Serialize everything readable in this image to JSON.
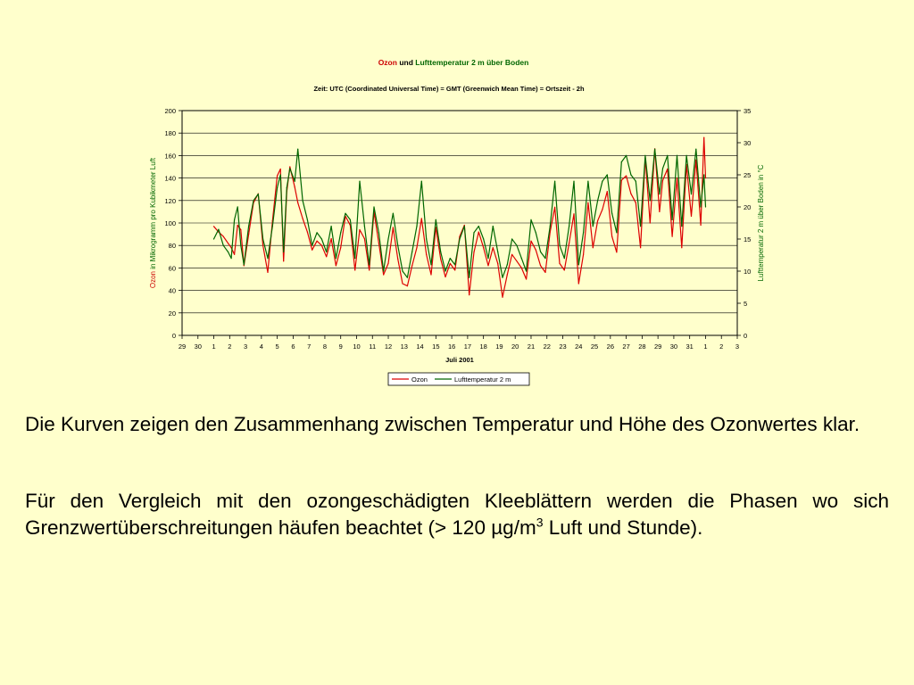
{
  "chart_data": {
    "type": "line",
    "title": {
      "ozon": "Ozon",
      "und": "und",
      "luft": "Lufttemperatur 2 m über Boden"
    },
    "subtitle": "Zeit: UTC (Coordinated Universal Time) = GMT (Greenwich Mean Time) = Ortszeit - 2h",
    "xlabel": "Juli 2001",
    "ylabel_left": {
      "ozon": "Ozon",
      "rest": " in Mikrogramm pro Kubikmeter Luft"
    },
    "ylabel_right": "Lufttemperatur 2 m über Boden in °C",
    "x_ticks": [
      "29",
      "30",
      "1",
      "2",
      "3",
      "4",
      "5",
      "6",
      "7",
      "8",
      "9",
      "10",
      "11",
      "12",
      "13",
      "14",
      "15",
      "16",
      "17",
      "18",
      "19",
      "20",
      "21",
      "22",
      "23",
      "24",
      "25",
      "26",
      "27",
      "28",
      "29",
      "30",
      "31",
      "1",
      "2",
      "3"
    ],
    "y_left_ticks": [
      "0",
      "20",
      "40",
      "60",
      "80",
      "100",
      "120",
      "140",
      "160",
      "180",
      "200"
    ],
    "y_right_ticks": [
      "0",
      "5",
      "10",
      "15",
      "20",
      "25",
      "30",
      "35"
    ],
    "ylim_left": [
      0,
      200
    ],
    "ylim_right": [
      0,
      35
    ],
    "grid": "horizontal",
    "legend_position": "bottom",
    "series": [
      {
        "name": "Ozon",
        "axis": "left",
        "color": "#dd0000",
        "x": [
          1.0,
          1.3,
          1.6,
          1.9,
          2.1,
          2.3,
          2.5,
          2.7,
          2.9,
          3.2,
          3.5,
          3.8,
          4.1,
          4.4,
          4.7,
          5.0,
          5.2,
          5.4,
          5.6,
          5.8,
          6.1,
          6.3,
          6.6,
          6.9,
          7.2,
          7.5,
          7.8,
          8.1,
          8.4,
          8.7,
          9.0,
          9.3,
          9.6,
          9.9,
          10.2,
          10.5,
          10.8,
          11.1,
          11.4,
          11.7,
          12.0,
          12.3,
          12.6,
          12.9,
          13.2,
          13.5,
          13.8,
          14.1,
          14.4,
          14.7,
          15.0,
          15.3,
          15.6,
          15.9,
          16.2,
          16.5,
          16.8,
          17.1,
          17.4,
          17.7,
          18.0,
          18.3,
          18.6,
          18.9,
          19.2,
          19.5,
          19.8,
          20.1,
          20.4,
          20.7,
          21.0,
          21.3,
          21.6,
          21.9,
          22.2,
          22.5,
          22.8,
          23.1,
          23.4,
          23.7,
          24.0,
          24.3,
          24.6,
          24.9,
          25.2,
          25.5,
          25.8,
          26.1,
          26.4,
          26.7,
          27.0,
          27.3,
          27.6,
          27.9,
          28.2,
          28.5,
          28.8,
          29.1,
          29.3,
          29.6,
          29.9,
          30.2,
          30.5,
          30.8,
          31.1,
          31.4,
          31.7,
          31.9,
          32.0
        ],
        "values": [
          97,
          92,
          88,
          82,
          78,
          72,
          98,
          94,
          62,
          90,
          118,
          126,
          80,
          56,
          102,
          142,
          148,
          66,
          128,
          150,
          132,
          118,
          104,
          92,
          76,
          84,
          80,
          70,
          86,
          62,
          78,
          106,
          98,
          58,
          94,
          86,
          58,
          110,
          82,
          54,
          64,
          96,
          68,
          46,
          44,
          62,
          78,
          104,
          72,
          54,
          96,
          68,
          52,
          64,
          58,
          88,
          98,
          36,
          74,
          92,
          78,
          62,
          78,
          64,
          34,
          54,
          72,
          66,
          60,
          50,
          84,
          76,
          62,
          56,
          92,
          114,
          64,
          58,
          82,
          108,
          46,
          72,
          118,
          78,
          102,
          112,
          128,
          88,
          74,
          138,
          142,
          126,
          118,
          78,
          158,
          100,
          166,
          110,
          138,
          148,
          88,
          140,
          78,
          152,
          106,
          156,
          98,
          176,
          140
        ]
      },
      {
        "name": "Lufttemperatur 2 m",
        "axis": "right",
        "color": "#006600",
        "x": [
          1.0,
          1.3,
          1.6,
          1.9,
          2.1,
          2.3,
          2.5,
          2.7,
          2.9,
          3.2,
          3.5,
          3.8,
          4.1,
          4.4,
          4.7,
          5.0,
          5.2,
          5.4,
          5.6,
          5.8,
          6.1,
          6.3,
          6.6,
          6.9,
          7.2,
          7.5,
          7.8,
          8.1,
          8.4,
          8.7,
          9.0,
          9.3,
          9.6,
          9.9,
          10.2,
          10.5,
          10.8,
          11.1,
          11.4,
          11.7,
          12.0,
          12.3,
          12.6,
          12.9,
          13.2,
          13.5,
          13.8,
          14.1,
          14.4,
          14.7,
          15.0,
          15.3,
          15.6,
          15.9,
          16.2,
          16.5,
          16.8,
          17.1,
          17.4,
          17.7,
          18.0,
          18.3,
          18.6,
          18.9,
          19.2,
          19.5,
          19.8,
          20.1,
          20.4,
          20.7,
          21.0,
          21.3,
          21.6,
          21.9,
          22.2,
          22.5,
          22.8,
          23.1,
          23.4,
          23.7,
          24.0,
          24.3,
          24.6,
          24.9,
          25.2,
          25.5,
          25.8,
          26.1,
          26.4,
          26.7,
          27.0,
          27.3,
          27.6,
          27.9,
          28.2,
          28.5,
          28.8,
          29.1,
          29.3,
          29.6,
          29.9,
          30.2,
          30.5,
          30.8,
          31.1,
          31.4,
          31.7,
          31.9,
          32.0
        ],
        "values": [
          15,
          16.5,
          14,
          13,
          12,
          18,
          20,
          14,
          11,
          17,
          21,
          22,
          15,
          12,
          17,
          23,
          25,
          13,
          23,
          26,
          24,
          29,
          21,
          18,
          14,
          16,
          15,
          13,
          17,
          12,
          16,
          19,
          18,
          12,
          24,
          17,
          11,
          20,
          16,
          10,
          15,
          19,
          14,
          10,
          9,
          13,
          17,
          24,
          15,
          11,
          18,
          13,
          10,
          12,
          11,
          15,
          17,
          9,
          16,
          17,
          15,
          12,
          17,
          13,
          9,
          11,
          15,
          14,
          12,
          10,
          18,
          16,
          13,
          12,
          17,
          24,
          14,
          12,
          17,
          24,
          11,
          16,
          24,
          17,
          21,
          24,
          25,
          19,
          16,
          27,
          28,
          25,
          24,
          17,
          28,
          21,
          29,
          22,
          26,
          28,
          18,
          28,
          17,
          28,
          22,
          29,
          20,
          25,
          20
        ]
      }
    ]
  },
  "legend": {
    "ozon": "Ozon",
    "temp": "Lufttemperatur 2 m"
  },
  "text": {
    "p1": "Die Kurven zeigen den Zusammenhang zwischen Temperatur und Höhe des Ozonwertes klar.",
    "p2_main": "Für den Vergleich mit den ozongeschädigten Kleeblättern werden die Phasen wo sich Grenzwertüberschreitungen häufen beachtet (> 120 µg/m",
    "p2_sup": "3",
    "p2_end": " Luft und Stunde)."
  },
  "colors": {
    "background": "#ffffcc",
    "ozon": "#dd0000",
    "temp": "#006600"
  }
}
